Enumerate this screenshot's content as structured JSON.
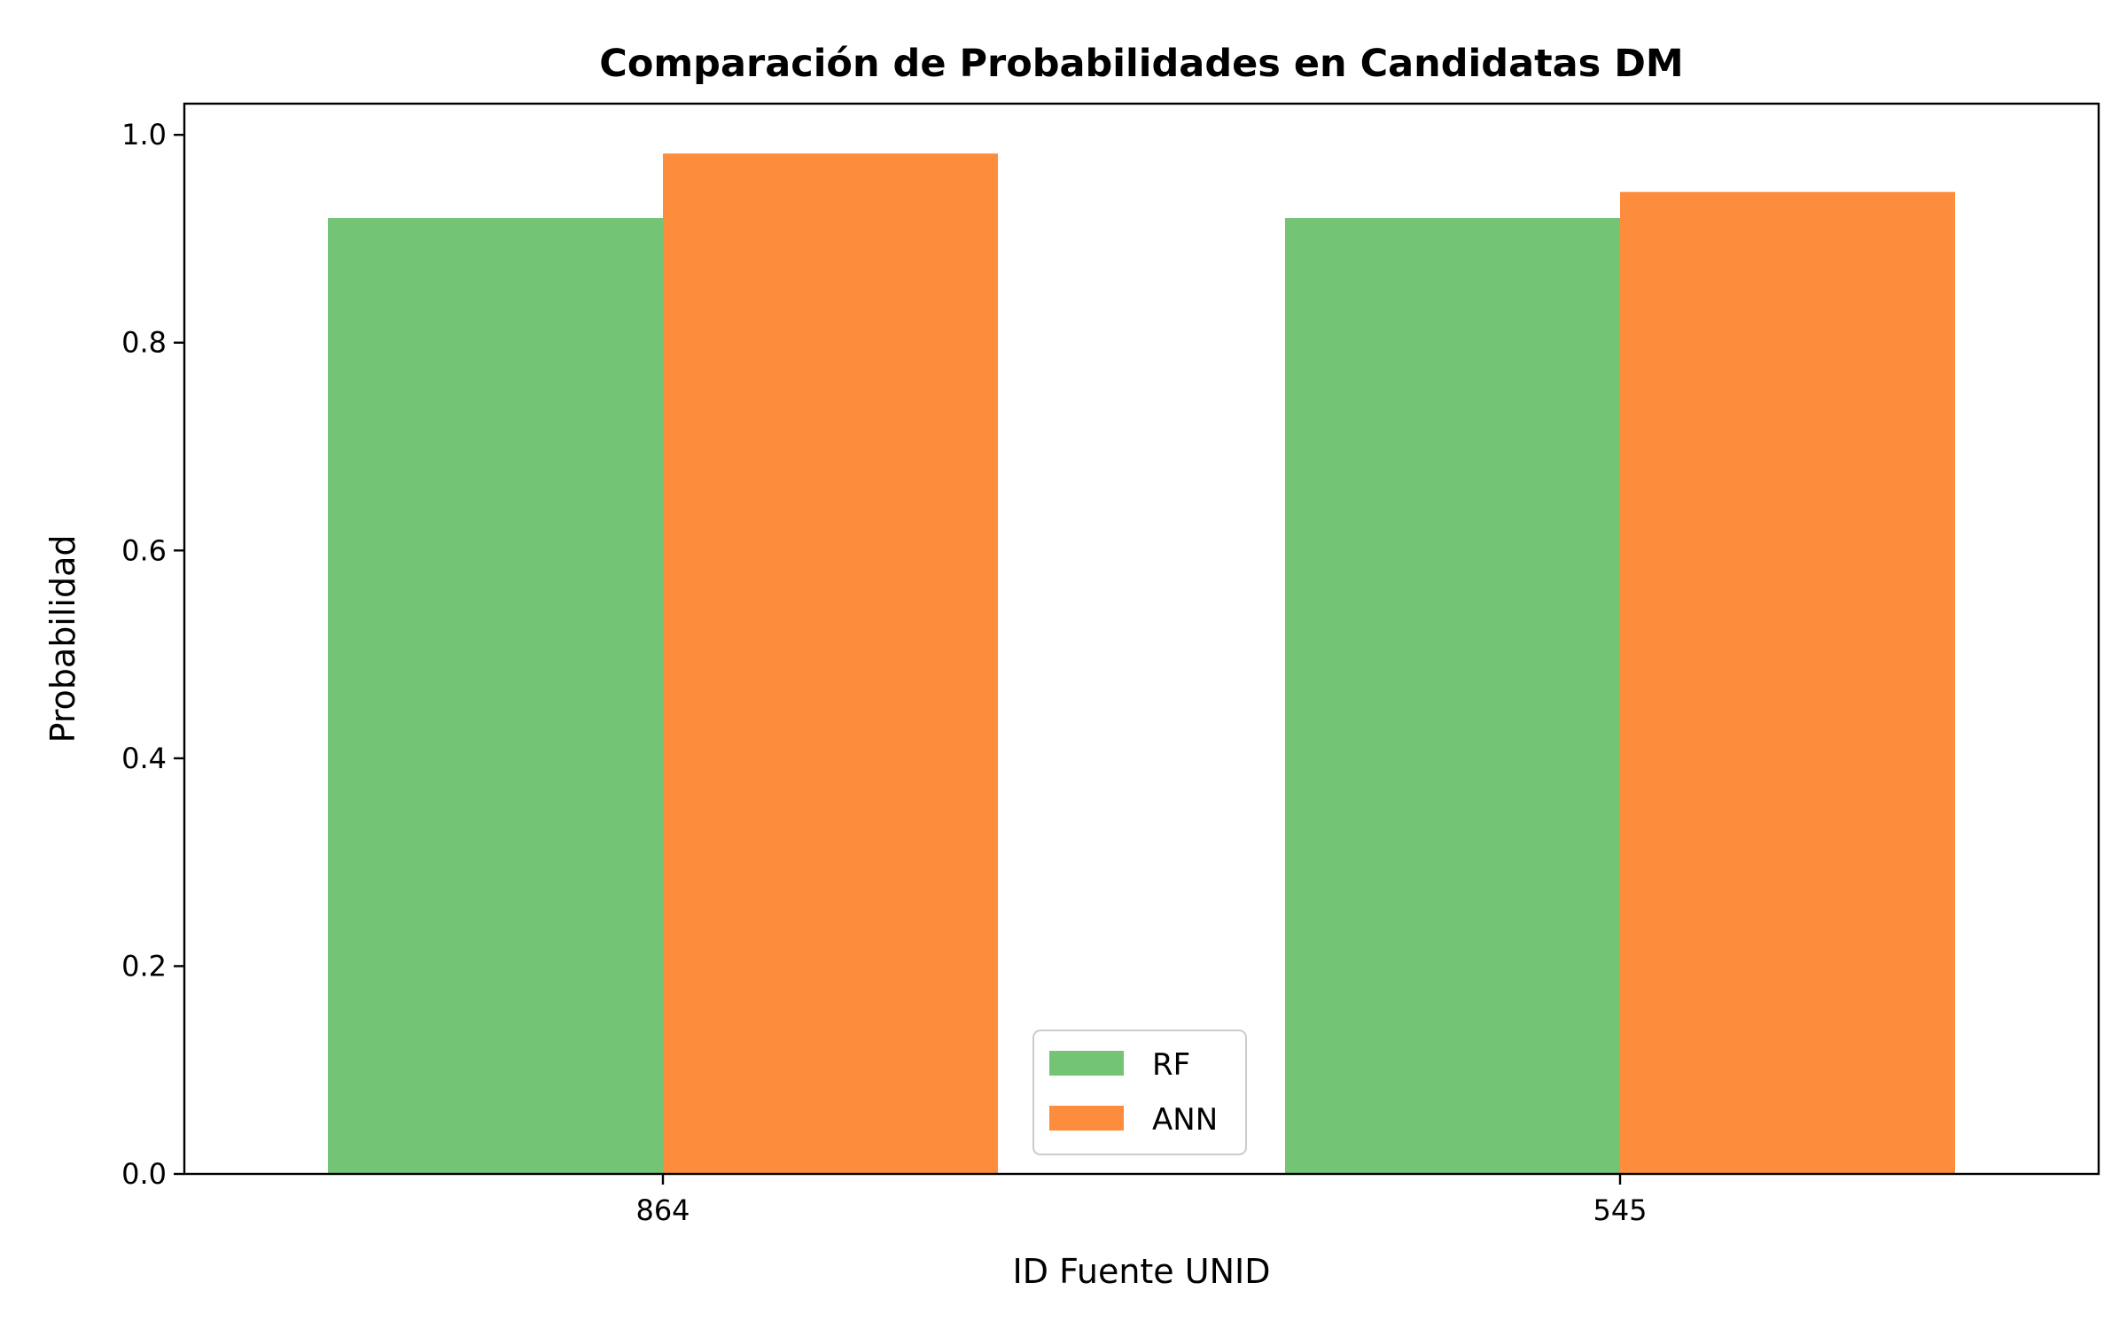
{
  "chart_data": {
    "type": "bar",
    "title": "Comparación de Probabilidades en Candidatas DM",
    "xlabel": "ID Fuente UNID",
    "ylabel": "Probabilidad",
    "categories": [
      "864",
      "545"
    ],
    "series": [
      {
        "name": "RF",
        "values": [
          0.92,
          0.92
        ],
        "color": "#74c476"
      },
      {
        "name": "ANN",
        "values": [
          0.982,
          0.945
        ],
        "color": "#fd8d3c"
      }
    ],
    "ylim": [
      0,
      1.03
    ],
    "yticks": [
      0.0,
      0.2,
      0.4,
      0.6,
      0.8,
      1.0
    ],
    "ytick_labels": [
      "0.0",
      "0.2",
      "0.4",
      "0.6",
      "0.8",
      "1.0"
    ],
    "grid": false,
    "legend_position": "bottom-center"
  }
}
